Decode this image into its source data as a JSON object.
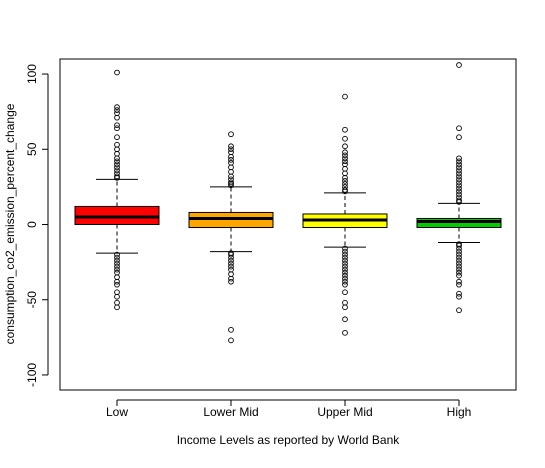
{
  "chart_data": {
    "type": "box",
    "title": "",
    "xlabel": "Income Levels as reported by World Bank",
    "ylabel": "consumption_co2_emission_percent_change",
    "ylim": [
      -110,
      110
    ],
    "yticks": [
      100,
      50,
      0,
      -50,
      -100
    ],
    "grid": false,
    "legend": "none",
    "groups": [
      {
        "category": "Low",
        "color": "#ff0000",
        "q1": 0,
        "median": 5,
        "q3": 12,
        "whisker_low": -19,
        "whisker_high": 30,
        "outliers": [
          101,
          78,
          76,
          74,
          71,
          66,
          64,
          58,
          53,
          50,
          47,
          44,
          42,
          40,
          38,
          36,
          34,
          32,
          31,
          -20,
          -22,
          -24,
          -26,
          -28,
          -30,
          -32,
          -35,
          -38,
          -40,
          -45,
          -48,
          -52,
          -55
        ]
      },
      {
        "category": "Lower Mid",
        "color": "#ffa500",
        "q1": -2,
        "median": 4,
        "q3": 8,
        "whisker_low": -18,
        "whisker_high": 25,
        "outliers": [
          60,
          52,
          50,
          48,
          45,
          43,
          41,
          38,
          35,
          32,
          30,
          28,
          27,
          26,
          -19,
          -20,
          -22,
          -24,
          -26,
          -28,
          -30,
          -33,
          -36,
          -38,
          -70,
          -77
        ]
      },
      {
        "category": "Upper Mid",
        "color": "#ffff00",
        "q1": -2,
        "median": 3,
        "q3": 7,
        "whisker_low": -15,
        "whisker_high": 21,
        "outliers": [
          85,
          63,
          57,
          52,
          48,
          46,
          44,
          42,
          40,
          37,
          34,
          31,
          29,
          27,
          25,
          23,
          22,
          -16,
          -18,
          -20,
          -22,
          -24,
          -26,
          -28,
          -30,
          -32,
          -34,
          -36,
          -38,
          -40,
          -45,
          -52,
          -55,
          -63,
          -72
        ]
      },
      {
        "category": "High",
        "color": "#00cc00",
        "q1": -2,
        "median": 2,
        "q3": 4,
        "whisker_low": -12,
        "whisker_high": 14,
        "outliers": [
          106,
          64,
          58,
          44,
          42,
          40,
          38,
          36,
          34,
          32,
          30,
          28,
          26,
          24,
          22,
          20,
          18,
          16,
          15,
          -13,
          -14,
          -16,
          -18,
          -20,
          -22,
          -24,
          -26,
          -28,
          -30,
          -32,
          -34,
          -38,
          -40,
          -46,
          -48,
          -57
        ]
      }
    ]
  }
}
